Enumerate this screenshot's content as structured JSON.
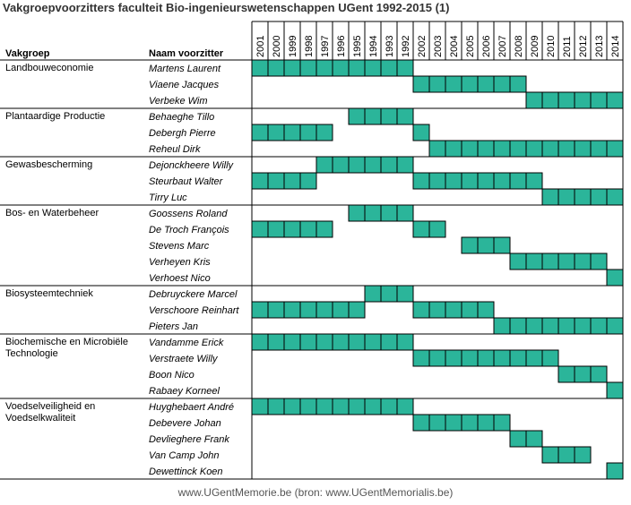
{
  "title": "Vakgroepvoorzitters faculteit Bio-ingenieurswetenschappen UGent 1992-2015 (1)",
  "footer": "www.UGentMemorie.be (bron: www.UGentMemorialis.be)",
  "fill_color": "#2BB59A",
  "chart_data": {
    "type": "table",
    "columns": {
      "group_header": "Vakgroep",
      "name_header": "Naam voorzitter"
    },
    "years": [
      "2001",
      "2000",
      "1999",
      "1998",
      "1997",
      "1996",
      "1995",
      "1994",
      "1993",
      "1992",
      "2002",
      "2003",
      "2004",
      "2005",
      "2006",
      "2007",
      "2008",
      "2009",
      "2010",
      "2011",
      "2012",
      "2013",
      "2014"
    ],
    "groups": [
      {
        "name_lines": [
          "Landbouweconomie"
        ],
        "rows": [
          {
            "name": "Martens Laurent",
            "years": [
              "2001",
              "2000",
              "1999",
              "1998",
              "1997",
              "1996",
              "1995",
              "1994",
              "1993",
              "1992"
            ]
          },
          {
            "name": "Viaene Jacques",
            "years": [
              "2002",
              "2003",
              "2004",
              "2005",
              "2006",
              "2007",
              "2008"
            ]
          },
          {
            "name": "Verbeke Wim",
            "years": [
              "2009",
              "2010",
              "2011",
              "2012",
              "2013",
              "2014"
            ]
          }
        ]
      },
      {
        "name_lines": [
          "Plantaardige Productie"
        ],
        "rows": [
          {
            "name": "Behaeghe Tillo",
            "years": [
              "1995",
              "1994",
              "1993",
              "1992"
            ]
          },
          {
            "name": "Debergh Pierre",
            "years": [
              "2001",
              "2000",
              "1999",
              "1998",
              "1997",
              "2002"
            ]
          },
          {
            "name": "Reheul Dirk",
            "years": [
              "2003",
              "2004",
              "2005",
              "2006",
              "2007",
              "2008",
              "2009",
              "2010",
              "2011",
              "2012",
              "2013",
              "2014"
            ]
          }
        ]
      },
      {
        "name_lines": [
          "Gewasbescherming"
        ],
        "rows": [
          {
            "name": "Dejonckheere Willy",
            "years": [
              "1997",
              "1996",
              "1995",
              "1994",
              "1993",
              "1992"
            ]
          },
          {
            "name": "Steurbaut Walter",
            "years": [
              "2001",
              "2000",
              "1999",
              "1998",
              "2002",
              "2003",
              "2004",
              "2005",
              "2006",
              "2007",
              "2008",
              "2009"
            ]
          },
          {
            "name": "Tirry Luc",
            "years": [
              "2010",
              "2011",
              "2012",
              "2013",
              "2014"
            ]
          }
        ]
      },
      {
        "name_lines": [
          "Bos- en Waterbeheer"
        ],
        "rows": [
          {
            "name": "Goossens Roland",
            "years": [
              "1995",
              "1994",
              "1993",
              "1992"
            ]
          },
          {
            "name": "De Troch François",
            "years": [
              "2001",
              "2000",
              "1999",
              "1998",
              "1997",
              "2002",
              "2003"
            ]
          },
          {
            "name": "Stevens Marc",
            "years": [
              "2005",
              "2006",
              "2007"
            ]
          },
          {
            "name": "Verheyen Kris",
            "years": [
              "2008",
              "2009",
              "2010",
              "2011",
              "2012",
              "2013"
            ]
          },
          {
            "name": "Verhoest Nico",
            "years": [
              "2014"
            ]
          }
        ]
      },
      {
        "name_lines": [
          "Biosysteemtechniek"
        ],
        "rows": [
          {
            "name": "Debruyckere Marcel",
            "years": [
              "1994",
              "1993",
              "1992"
            ]
          },
          {
            "name": "Verschoore Reinhart",
            "years": [
              "2001",
              "2000",
              "1999",
              "1998",
              "1997",
              "1996",
              "1995",
              "2002",
              "2003",
              "2004",
              "2005",
              "2006"
            ]
          },
          {
            "name": "Pieters Jan",
            "years": [
              "2007",
              "2008",
              "2009",
              "2010",
              "2011",
              "2012",
              "2013",
              "2014"
            ]
          }
        ]
      },
      {
        "name_lines": [
          "Biochemische en Microbiële",
          "Technologie"
        ],
        "rows": [
          {
            "name": "Vandamme Erick",
            "years": [
              "2001",
              "2000",
              "1999",
              "1998",
              "1997",
              "1996",
              "1995",
              "1994",
              "1993",
              "1992"
            ]
          },
          {
            "name": "Verstraete Willy",
            "years": [
              "2002",
              "2003",
              "2004",
              "2005",
              "2006",
              "2007",
              "2008",
              "2009",
              "2010"
            ]
          },
          {
            "name": "Boon Nico",
            "years": [
              "2011",
              "2012",
              "2013"
            ]
          },
          {
            "name": "Rabaey Korneel",
            "years": [
              "2014"
            ]
          }
        ]
      },
      {
        "name_lines": [
          "Voedselveiligheid en",
          "Voedselkwaliteit"
        ],
        "rows": [
          {
            "name": "Huyghebaert André",
            "years": [
              "2001",
              "2000",
              "1999",
              "1998",
              "1997",
              "1996",
              "1995",
              "1994",
              "1993",
              "1992"
            ]
          },
          {
            "name": "Debevere Johan",
            "years": [
              "2002",
              "2003",
              "2004",
              "2005",
              "2006",
              "2007"
            ]
          },
          {
            "name": "Devlieghere Frank",
            "years": [
              "2008",
              "2009"
            ]
          },
          {
            "name": "Van Camp John",
            "years": [
              "2010",
              "2011",
              "2012"
            ]
          },
          {
            "name": "Dewettinck Koen",
            "years": [
              "2014"
            ]
          }
        ]
      }
    ]
  }
}
